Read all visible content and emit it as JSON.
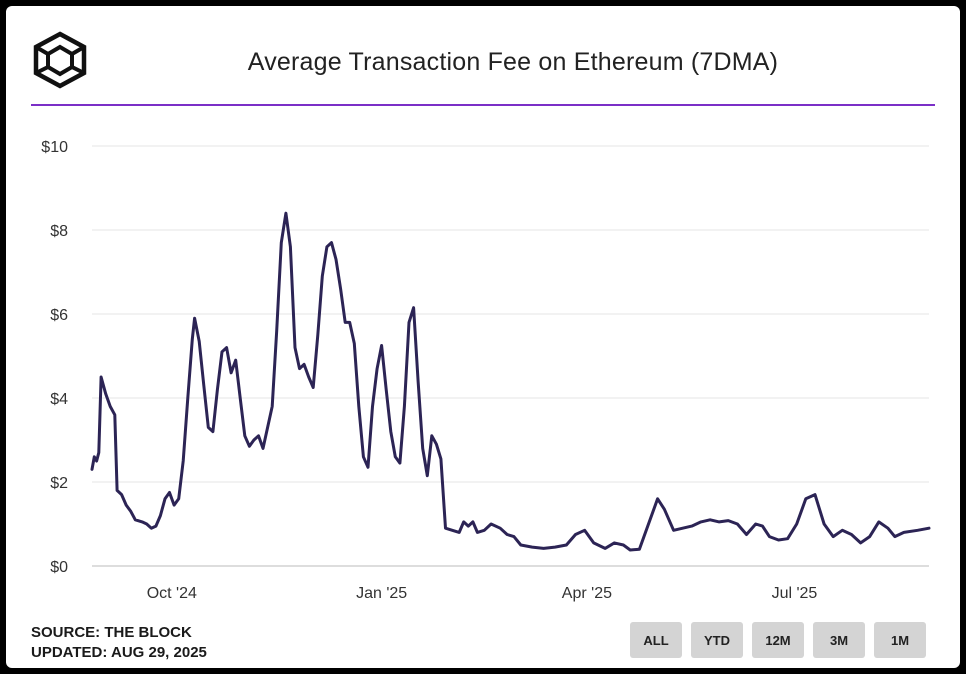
{
  "header": {
    "title": "Average Transaction Fee on Ethereum (7DMA)",
    "logo_icon": "the-block-cube-logo-icon"
  },
  "footer": {
    "source": "SOURCE: THE BLOCK",
    "updated": "UPDATED: AUG 29, 2025"
  },
  "range_buttons": [
    "ALL",
    "YTD",
    "12M",
    "3M",
    "1M"
  ],
  "colors": {
    "line": "#2c2455",
    "accent_rule": "#7b2fc7",
    "grid": "#e6e6e6",
    "button_bg": "#d4d4d4"
  },
  "chart_data": {
    "type": "line",
    "title": "Average Transaction Fee on Ethereum (7DMA)",
    "xlabel": "",
    "ylabel": "",
    "ylim": [
      0,
      10
    ],
    "yticks": [
      0,
      2,
      4,
      6,
      8,
      10
    ],
    "ytick_labels": [
      "$0",
      "$2",
      "$4",
      "$6",
      "$8",
      "$10"
    ],
    "xlim": [
      "2024-08-27",
      "2025-08-29"
    ],
    "xticks": [
      {
        "date": "2024-10-01",
        "label": "Oct '24"
      },
      {
        "date": "2025-01-01",
        "label": "Jan '25"
      },
      {
        "date": "2025-04-01",
        "label": "Apr '25"
      },
      {
        "date": "2025-07-01",
        "label": "Jul '25"
      }
    ],
    "grid": true,
    "legend": "none",
    "series": [
      {
        "points": [
          [
            "2024-08-27",
            2.3
          ],
          [
            "2024-08-28",
            2.6
          ],
          [
            "2024-08-29",
            2.5
          ],
          [
            "2024-08-30",
            2.7
          ],
          [
            "2024-08-31",
            4.5
          ],
          [
            "2024-09-02",
            4.1
          ],
          [
            "2024-09-04",
            3.8
          ],
          [
            "2024-09-06",
            3.6
          ],
          [
            "2024-09-07",
            1.8
          ],
          [
            "2024-09-09",
            1.7
          ],
          [
            "2024-09-11",
            1.45
          ],
          [
            "2024-09-13",
            1.3
          ],
          [
            "2024-09-15",
            1.1
          ],
          [
            "2024-09-18",
            1.05
          ],
          [
            "2024-09-20",
            1.0
          ],
          [
            "2024-09-22",
            0.9
          ],
          [
            "2024-09-24",
            0.95
          ],
          [
            "2024-09-26",
            1.2
          ],
          [
            "2024-09-28",
            1.6
          ],
          [
            "2024-09-30",
            1.75
          ],
          [
            "2024-10-02",
            1.45
          ],
          [
            "2024-10-04",
            1.6
          ],
          [
            "2024-10-06",
            2.5
          ],
          [
            "2024-10-08",
            4.0
          ],
          [
            "2024-10-10",
            5.4
          ],
          [
            "2024-10-11",
            5.9
          ],
          [
            "2024-10-13",
            5.35
          ],
          [
            "2024-10-15",
            4.3
          ],
          [
            "2024-10-17",
            3.3
          ],
          [
            "2024-10-19",
            3.2
          ],
          [
            "2024-10-21",
            4.2
          ],
          [
            "2024-10-23",
            5.1
          ],
          [
            "2024-10-25",
            5.2
          ],
          [
            "2024-10-27",
            4.6
          ],
          [
            "2024-10-29",
            4.9
          ],
          [
            "2024-10-31",
            4.0
          ],
          [
            "2024-11-02",
            3.1
          ],
          [
            "2024-11-04",
            2.85
          ],
          [
            "2024-11-06",
            3.0
          ],
          [
            "2024-11-08",
            3.1
          ],
          [
            "2024-11-10",
            2.8
          ],
          [
            "2024-11-12",
            3.3
          ],
          [
            "2024-11-14",
            3.8
          ],
          [
            "2024-11-16",
            5.6
          ],
          [
            "2024-11-18",
            7.7
          ],
          [
            "2024-11-20",
            8.4
          ],
          [
            "2024-11-22",
            7.6
          ],
          [
            "2024-11-24",
            5.2
          ],
          [
            "2024-11-26",
            4.7
          ],
          [
            "2024-11-28",
            4.8
          ],
          [
            "2024-11-30",
            4.5
          ],
          [
            "2024-12-02",
            4.25
          ],
          [
            "2024-12-04",
            5.5
          ],
          [
            "2024-12-06",
            6.9
          ],
          [
            "2024-12-08",
            7.6
          ],
          [
            "2024-12-10",
            7.7
          ],
          [
            "2024-12-12",
            7.3
          ],
          [
            "2024-12-14",
            6.6
          ],
          [
            "2024-12-16",
            5.8
          ],
          [
            "2024-12-18",
            5.8
          ],
          [
            "2024-12-20",
            5.3
          ],
          [
            "2024-12-22",
            3.8
          ],
          [
            "2024-12-24",
            2.6
          ],
          [
            "2024-12-26",
            2.35
          ],
          [
            "2024-12-28",
            3.8
          ],
          [
            "2024-12-30",
            4.7
          ],
          [
            "2025-01-01",
            5.25
          ],
          [
            "2025-01-03",
            4.2
          ],
          [
            "2025-01-05",
            3.2
          ],
          [
            "2025-01-07",
            2.6
          ],
          [
            "2025-01-09",
            2.45
          ],
          [
            "2025-01-11",
            3.8
          ],
          [
            "2025-01-13",
            5.8
          ],
          [
            "2025-01-15",
            6.15
          ],
          [
            "2025-01-17",
            4.4
          ],
          [
            "2025-01-19",
            2.8
          ],
          [
            "2025-01-21",
            2.15
          ],
          [
            "2025-01-23",
            3.1
          ],
          [
            "2025-01-25",
            2.9
          ],
          [
            "2025-01-27",
            2.55
          ],
          [
            "2025-01-29",
            0.9
          ],
          [
            "2025-02-01",
            0.85
          ],
          [
            "2025-02-04",
            0.8
          ],
          [
            "2025-02-06",
            1.05
          ],
          [
            "2025-02-08",
            0.95
          ],
          [
            "2025-02-10",
            1.05
          ],
          [
            "2025-02-12",
            0.8
          ],
          [
            "2025-02-15",
            0.85
          ],
          [
            "2025-02-18",
            1.0
          ],
          [
            "2025-02-22",
            0.9
          ],
          [
            "2025-02-25",
            0.75
          ],
          [
            "2025-02-28",
            0.7
          ],
          [
            "2025-03-03",
            0.5
          ],
          [
            "2025-03-08",
            0.45
          ],
          [
            "2025-03-13",
            0.42
          ],
          [
            "2025-03-18",
            0.45
          ],
          [
            "2025-03-23",
            0.5
          ],
          [
            "2025-03-27",
            0.75
          ],
          [
            "2025-03-31",
            0.85
          ],
          [
            "2025-04-04",
            0.55
          ],
          [
            "2025-04-09",
            0.42
          ],
          [
            "2025-04-13",
            0.55
          ],
          [
            "2025-04-17",
            0.5
          ],
          [
            "2025-04-20",
            0.38
          ],
          [
            "2025-04-24",
            0.4
          ],
          [
            "2025-04-28",
            1.0
          ],
          [
            "2025-05-02",
            1.6
          ],
          [
            "2025-05-05",
            1.35
          ],
          [
            "2025-05-09",
            0.85
          ],
          [
            "2025-05-13",
            0.9
          ],
          [
            "2025-05-17",
            0.95
          ],
          [
            "2025-05-21",
            1.05
          ],
          [
            "2025-05-25",
            1.1
          ],
          [
            "2025-05-29",
            1.05
          ],
          [
            "2025-06-02",
            1.08
          ],
          [
            "2025-06-06",
            1.0
          ],
          [
            "2025-06-10",
            0.75
          ],
          [
            "2025-06-14",
            1.0
          ],
          [
            "2025-06-17",
            0.95
          ],
          [
            "2025-06-20",
            0.7
          ],
          [
            "2025-06-24",
            0.62
          ],
          [
            "2025-06-28",
            0.65
          ],
          [
            "2025-07-02",
            1.0
          ],
          [
            "2025-07-06",
            1.6
          ],
          [
            "2025-07-10",
            1.7
          ],
          [
            "2025-07-14",
            1.0
          ],
          [
            "2025-07-18",
            0.7
          ],
          [
            "2025-07-22",
            0.85
          ],
          [
            "2025-07-26",
            0.75
          ],
          [
            "2025-07-30",
            0.55
          ],
          [
            "2025-08-03",
            0.7
          ],
          [
            "2025-08-07",
            1.05
          ],
          [
            "2025-08-11",
            0.9
          ],
          [
            "2025-08-14",
            0.7
          ],
          [
            "2025-08-18",
            0.8
          ],
          [
            "2025-08-24",
            0.85
          ],
          [
            "2025-08-29",
            0.9
          ]
        ]
      }
    ]
  }
}
